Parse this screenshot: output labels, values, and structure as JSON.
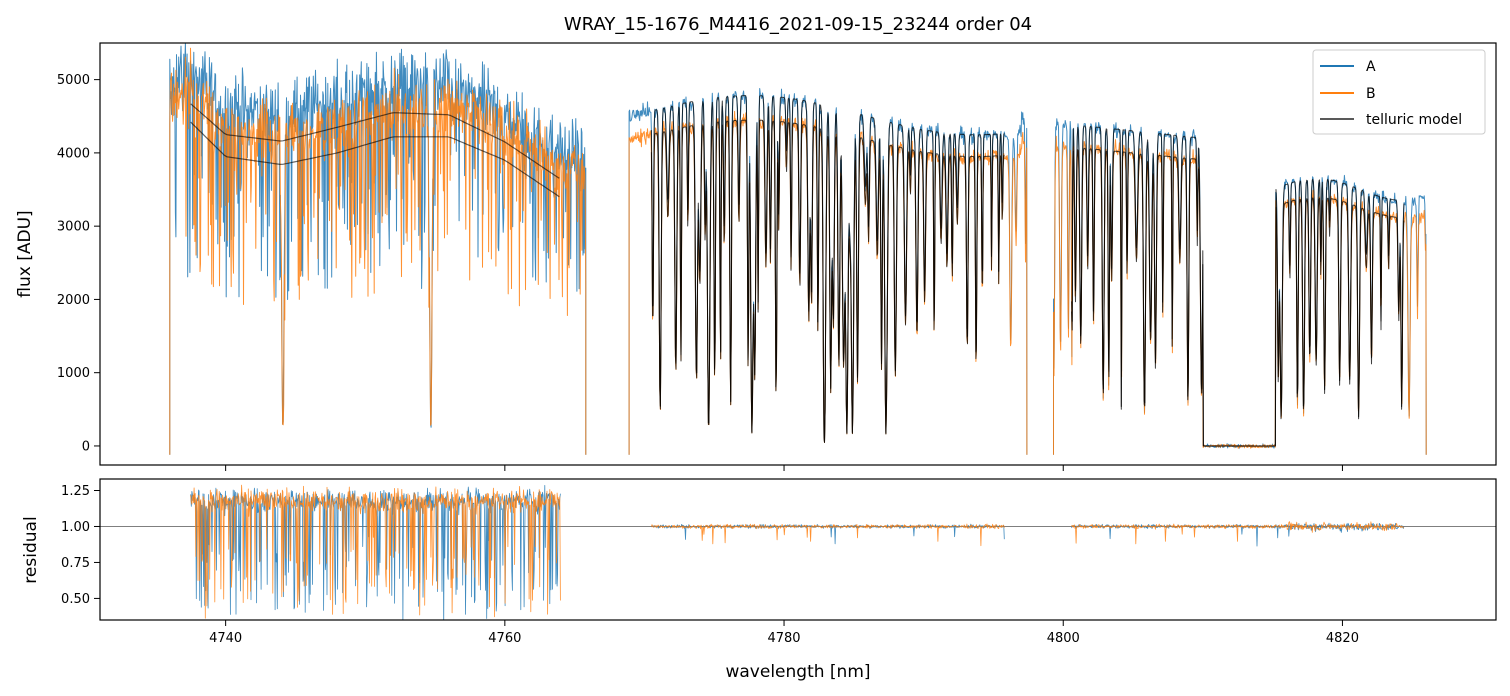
{
  "chart_data": [
    {
      "type": "line",
      "title": "WRAY_15-1676_M4416_2021-09-15_23244  order 04",
      "xlabel": "",
      "ylabel": "flux [ADU]",
      "xlim": [
        4731,
        4831
      ],
      "ylim": [
        -260,
        5500
      ],
      "xticks": [
        4740,
        4760,
        4780,
        4800,
        4820
      ],
      "yticks": [
        0,
        1000,
        2000,
        3000,
        4000,
        5000
      ],
      "ytick_labels": [
        "0",
        "1000",
        "2000",
        "3000",
        "4000",
        "5000"
      ],
      "x_tick_labels_visible": false,
      "grid": false,
      "legend": {
        "position": "top-right",
        "entries": [
          {
            "label": "A",
            "color": "#1f77b4"
          },
          {
            "label": "B",
            "color": "#ff7f0e"
          },
          {
            "label": "telluric model",
            "color": "#000000"
          }
        ]
      },
      "series": [
        {
          "name": "A",
          "color": "#1f77b4",
          "note_segments": [
            [
              4736.0,
              4765.8
            ],
            [
              4768.9,
              4797.4
            ],
            [
              4799.3,
              4826.0
            ]
          ]
        },
        {
          "name": "B",
          "color": "#ff7f0e",
          "note_segments": [
            [
              4736.0,
              4765.8
            ],
            [
              4768.9,
              4797.4
            ],
            [
              4799.3,
              4826.0
            ]
          ]
        },
        {
          "name": "telluric model",
          "color": "#000000",
          "note_segments": [
            [
              4737.5,
              4764.0
            ],
            [
              4770.5,
              4795.8
            ],
            [
              4800.6,
              4824.4
            ]
          ]
        }
      ],
      "continuum_A": [
        [
          4737.5,
          4670
        ],
        [
          4740,
          4250
        ],
        [
          4744,
          4160
        ],
        [
          4748,
          4350
        ],
        [
          4752,
          4550
        ],
        [
          4756,
          4520
        ],
        [
          4760,
          4150
        ],
        [
          4764,
          3640
        ]
      ],
      "continuum_B": [
        [
          4737.5,
          4420
        ],
        [
          4740,
          3950
        ],
        [
          4744,
          3840
        ],
        [
          4748,
          4000
        ],
        [
          4752,
          4220
        ],
        [
          4756,
          4220
        ],
        [
          4760,
          3900
        ],
        [
          4764,
          3390
        ]
      ],
      "deep_absorption_lines_nm": [
        4744.1,
        4754.7,
        4774.6,
        4777.7,
        4782.9,
        4784.5,
        4784.9,
        4787.3,
        4810.3,
        4810.9,
        4811.5,
        4812.0,
        4812.5,
        4813.0,
        4813.5,
        4814.0,
        4814.5
      ]
    },
    {
      "type": "line",
      "title": "",
      "xlabel": "wavelength [nm]",
      "ylabel": "residual",
      "xlim": [
        4731,
        4831
      ],
      "ylim": [
        0.35,
        1.33
      ],
      "xticks": [
        4740,
        4760,
        4780,
        4800,
        4820
      ],
      "xtick_labels": [
        "4740",
        "4760",
        "4780",
        "4800",
        "4820"
      ],
      "yticks": [
        0.5,
        0.75,
        1.0,
        1.25
      ],
      "ytick_labels": [
        "0.50",
        "0.75",
        "1.00",
        "1.25"
      ],
      "reference_line_y": 1.0,
      "grid": false,
      "series": [
        {
          "name": "A",
          "color": "#1f77b4"
        },
        {
          "name": "B",
          "color": "#ff7f0e"
        }
      ],
      "residual_segments_nm": [
        [
          4737.5,
          4764.0
        ],
        [
          4770.5,
          4795.8
        ],
        [
          4800.6,
          4824.4
        ]
      ]
    }
  ]
}
